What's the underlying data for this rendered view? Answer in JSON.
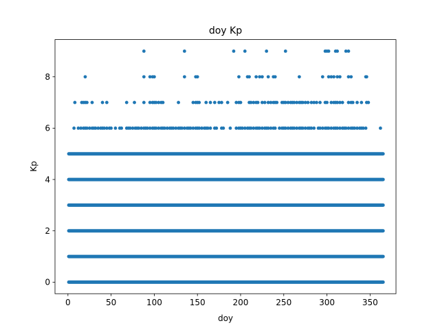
{
  "chart_data": {
    "type": "scatter",
    "title": "doy Kp",
    "xlabel": "doy",
    "ylabel": "Kp",
    "xlim": [
      -15,
      380
    ],
    "ylim": [
      -0.45,
      9.45
    ],
    "xticks": [
      0,
      50,
      100,
      150,
      200,
      250,
      300,
      350
    ],
    "yticks": [
      0,
      2,
      4,
      6,
      8
    ],
    "grid": false,
    "legend": "none",
    "marker_color": "#1f77b4",
    "dense_rows": [
      {
        "y": 0,
        "x_range": [
          1,
          365
        ]
      },
      {
        "y": 1,
        "x_range": [
          1,
          365
        ]
      },
      {
        "y": 2,
        "x_range": [
          1,
          365
        ]
      },
      {
        "y": 3,
        "x_range": [
          1,
          365
        ]
      },
      {
        "y": 4,
        "x_range": [
          1,
          365
        ]
      },
      {
        "y": 5,
        "x_range": [
          1,
          365
        ]
      }
    ],
    "points": {
      "y6": [
        7,
        12,
        15,
        18,
        20,
        22,
        25,
        28,
        30,
        32,
        35,
        38,
        40,
        42,
        45,
        48,
        50,
        55,
        60,
        62,
        68,
        70,
        72,
        75,
        78,
        80,
        82,
        85,
        88,
        90,
        92,
        95,
        98,
        100,
        102,
        105,
        108,
        110,
        112,
        115,
        118,
        120,
        122,
        125,
        128,
        130,
        132,
        135,
        138,
        140,
        142,
        145,
        148,
        150,
        152,
        155,
        158,
        160,
        162,
        165,
        170,
        172,
        178,
        180,
        188,
        195,
        198,
        200,
        202,
        205,
        208,
        210,
        212,
        215,
        218,
        220,
        222,
        225,
        228,
        230,
        232,
        235,
        238,
        240,
        245,
        248,
        250,
        252,
        255,
        258,
        260,
        262,
        265,
        268,
        270,
        272,
        275,
        278,
        280,
        282,
        285,
        290,
        292,
        295,
        298,
        300,
        302,
        305,
        308,
        310,
        312,
        315,
        318,
        320,
        322,
        325,
        328,
        330,
        332,
        335,
        338,
        340,
        342,
        345,
        362
      ],
      "y7": [
        8,
        16,
        18,
        20,
        22,
        28,
        40,
        45,
        68,
        77,
        88,
        95,
        98,
        100,
        102,
        105,
        108,
        110,
        128,
        145,
        148,
        150,
        152,
        160,
        165,
        170,
        175,
        178,
        185,
        195,
        198,
        200,
        210,
        212,
        215,
        218,
        220,
        225,
        228,
        232,
        235,
        238,
        240,
        242,
        248,
        250,
        252,
        255,
        258,
        260,
        262,
        265,
        268,
        270,
        272,
        275,
        278,
        282,
        285,
        288,
        292,
        298,
        300,
        305,
        308,
        310,
        312,
        315,
        318,
        325,
        328,
        330,
        335,
        340,
        346,
        348
      ],
      "y8": [
        20,
        88,
        95,
        98,
        100,
        135,
        148,
        150,
        198,
        208,
        210,
        218,
        222,
        225,
        232,
        238,
        240,
        268,
        295,
        302,
        305,
        308,
        312,
        315,
        325,
        328,
        345,
        346
      ],
      "y9": [
        88,
        135,
        192,
        205,
        230,
        252,
        298,
        300,
        302,
        310,
        312,
        322,
        325
      ]
    }
  }
}
